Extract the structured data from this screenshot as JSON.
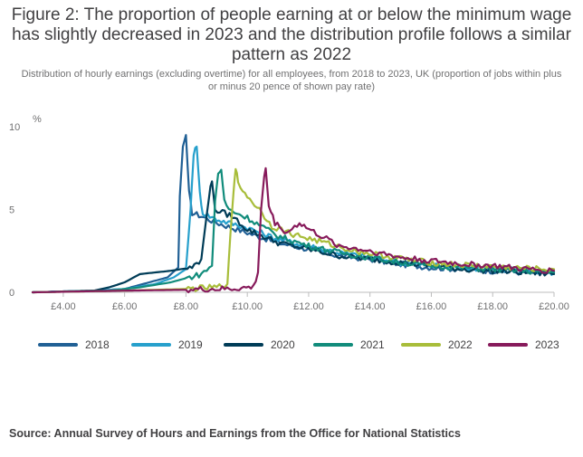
{
  "title": "Figure 2: The proportion of people earning at or below the minimum wage has slightly decreased in 2023 and the distribution profile follows a similar pattern as 2022",
  "subtitle": "Distribution of hourly earnings (excluding overtime) for all employees, from 2018 to 2023, UK (proportion of jobs within plus or minus 20 pence of shown pay rate)",
  "source": "Source: Annual Survey of Hours and Earnings from the Office for National Statistics",
  "chart_data": {
    "type": "line",
    "y_unit_label": "%",
    "xlim": [
      3,
      20
    ],
    "ylim": [
      0,
      10
    ],
    "x_ticks": [
      4,
      6,
      8,
      10,
      12,
      14,
      16,
      18,
      20
    ],
    "x_tick_labels": [
      "£4.00",
      "£6.00",
      "£8.00",
      "£10.00",
      "£12.00",
      "£14.00",
      "£16.00",
      "£18.00",
      "£20.00"
    ],
    "y_ticks": [
      0,
      5,
      10
    ],
    "y_tick_labels": [
      "0",
      "5",
      "10"
    ],
    "grid": false,
    "legend_position": "bottom",
    "series": [
      {
        "name": "2018",
        "color": "#206095",
        "points": [
          [
            3.0,
            0.0
          ],
          [
            5.0,
            0.1
          ],
          [
            6.0,
            0.2
          ],
          [
            6.8,
            0.6
          ],
          [
            7.4,
            0.9
          ],
          [
            7.75,
            1.5
          ],
          [
            7.8,
            5.8
          ],
          [
            7.9,
            8.8
          ],
          [
            8.0,
            9.5
          ],
          [
            8.1,
            6.0
          ],
          [
            8.2,
            4.8
          ],
          [
            8.5,
            4.6
          ],
          [
            9.0,
            4.2
          ],
          [
            10.0,
            3.6
          ],
          [
            11.0,
            3.0
          ],
          [
            12.0,
            2.6
          ],
          [
            13.0,
            2.2
          ],
          [
            14.0,
            2.0
          ],
          [
            15.0,
            1.7
          ],
          [
            16.0,
            1.5
          ],
          [
            17.0,
            1.4
          ],
          [
            18.0,
            1.3
          ],
          [
            19.0,
            1.2
          ],
          [
            20.0,
            1.2
          ]
        ]
      },
      {
        "name": "2019",
        "color": "#27a0cc",
        "points": [
          [
            3.0,
            0.0
          ],
          [
            5.0,
            0.1
          ],
          [
            6.0,
            0.2
          ],
          [
            7.0,
            0.5
          ],
          [
            7.6,
            0.9
          ],
          [
            8.0,
            1.4
          ],
          [
            8.15,
            5.0
          ],
          [
            8.25,
            8.4
          ],
          [
            8.35,
            8.8
          ],
          [
            8.45,
            6.0
          ],
          [
            8.55,
            4.8
          ],
          [
            9.0,
            4.4
          ],
          [
            10.0,
            3.9
          ],
          [
            11.0,
            3.2
          ],
          [
            12.0,
            2.8
          ],
          [
            13.0,
            2.4
          ],
          [
            14.0,
            2.1
          ],
          [
            15.0,
            1.8
          ],
          [
            16.0,
            1.6
          ],
          [
            17.0,
            1.5
          ],
          [
            18.0,
            1.4
          ],
          [
            19.0,
            1.3
          ],
          [
            20.0,
            1.2
          ]
        ]
      },
      {
        "name": "2020",
        "color": "#003c57",
        "points": [
          [
            3.0,
            0.0
          ],
          [
            5.0,
            0.1
          ],
          [
            5.5,
            0.3
          ],
          [
            6.0,
            0.6
          ],
          [
            6.5,
            1.1
          ],
          [
            7.5,
            1.3
          ],
          [
            8.2,
            1.5
          ],
          [
            8.5,
            2.0
          ],
          [
            8.6,
            3.5
          ],
          [
            8.75,
            5.8
          ],
          [
            8.85,
            6.7
          ],
          [
            8.95,
            5.0
          ],
          [
            9.5,
            4.6
          ],
          [
            10.0,
            3.8
          ],
          [
            11.0,
            3.0
          ],
          [
            12.0,
            2.6
          ],
          [
            13.0,
            2.2
          ],
          [
            14.0,
            2.0
          ],
          [
            15.0,
            1.8
          ],
          [
            16.0,
            1.6
          ],
          [
            17.0,
            1.4
          ],
          [
            18.0,
            1.3
          ],
          [
            19.0,
            1.2
          ],
          [
            20.0,
            1.1
          ]
        ]
      },
      {
        "name": "2021",
        "color": "#118c7b",
        "points": [
          [
            3.0,
            0.0
          ],
          [
            5.5,
            0.1
          ],
          [
            6.5,
            0.3
          ],
          [
            7.5,
            0.6
          ],
          [
            8.5,
            1.1
          ],
          [
            8.85,
            1.6
          ],
          [
            8.95,
            5.5
          ],
          [
            9.05,
            7.2
          ],
          [
            9.15,
            7.4
          ],
          [
            9.25,
            5.5
          ],
          [
            9.4,
            5.0
          ],
          [
            10.0,
            4.5
          ],
          [
            11.0,
            3.4
          ],
          [
            12.0,
            2.8
          ],
          [
            13.0,
            2.4
          ],
          [
            14.0,
            2.1
          ],
          [
            15.0,
            1.8
          ],
          [
            16.0,
            1.6
          ],
          [
            17.0,
            1.5
          ],
          [
            18.0,
            1.4
          ],
          [
            19.0,
            1.3
          ],
          [
            20.0,
            1.2
          ]
        ]
      },
      {
        "name": "2022",
        "color": "#a8bd3a",
        "points": [
          [
            3.0,
            0.0
          ],
          [
            6.0,
            0.1
          ],
          [
            8.0,
            0.2
          ],
          [
            9.0,
            0.3
          ],
          [
            9.35,
            0.5
          ],
          [
            9.45,
            3.5
          ],
          [
            9.55,
            6.0
          ],
          [
            9.62,
            7.6
          ],
          [
            9.7,
            6.5
          ],
          [
            9.85,
            6.2
          ],
          [
            10.0,
            5.8
          ],
          [
            10.4,
            5.0
          ],
          [
            10.8,
            4.0
          ],
          [
            11.5,
            3.5
          ],
          [
            12.5,
            3.0
          ],
          [
            13.5,
            2.5
          ],
          [
            14.5,
            2.2
          ],
          [
            15.5,
            1.9
          ],
          [
            16.5,
            1.7
          ],
          [
            17.5,
            1.6
          ],
          [
            18.5,
            1.5
          ],
          [
            19.5,
            1.4
          ],
          [
            20.0,
            1.4
          ]
        ]
      },
      {
        "name": "2023",
        "color": "#871a5b",
        "points": [
          [
            3.0,
            0.0
          ],
          [
            6.0,
            0.1
          ],
          [
            8.0,
            0.15
          ],
          [
            9.5,
            0.2
          ],
          [
            10.2,
            0.3
          ],
          [
            10.35,
            1.2
          ],
          [
            10.45,
            5.0
          ],
          [
            10.55,
            7.0
          ],
          [
            10.6,
            7.5
          ],
          [
            10.7,
            5.2
          ],
          [
            10.9,
            4.2
          ],
          [
            11.3,
            3.6
          ],
          [
            11.7,
            4.2
          ],
          [
            12.0,
            3.8
          ],
          [
            12.5,
            3.3
          ],
          [
            13.0,
            2.8
          ],
          [
            14.0,
            2.5
          ],
          [
            15.0,
            2.1
          ],
          [
            16.0,
            1.9
          ],
          [
            17.0,
            1.7
          ],
          [
            18.0,
            1.6
          ],
          [
            19.0,
            1.4
          ],
          [
            20.0,
            1.3
          ]
        ]
      }
    ]
  }
}
